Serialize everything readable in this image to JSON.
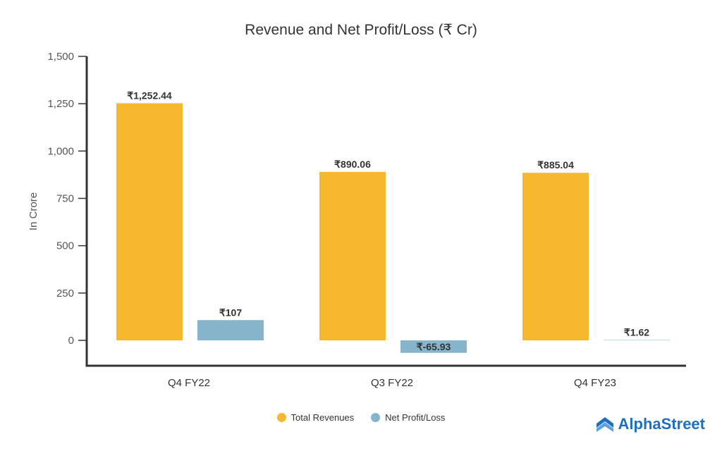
{
  "chart_data": {
    "type": "bar",
    "title": "Revenue and Net Profit/Loss (₹ Cr)",
    "xlabel": "",
    "ylabel": "In Crore",
    "ylim": [
      -134,
      1500
    ],
    "yticks": [
      0,
      250,
      500,
      750,
      1000,
      1250,
      1500
    ],
    "ytick_labels": [
      "0",
      "250",
      "500",
      "750",
      "1,000",
      "1,250",
      "1,500"
    ],
    "categories": [
      "Q4 FY22",
      "Q3 FY22",
      "Q4 FY23"
    ],
    "series": [
      {
        "name": "Total Revenues",
        "color": "#F5B82E",
        "values": [
          1252.44,
          890.06,
          885.04
        ],
        "labels": [
          "₹1,252.44",
          "₹890.06",
          "₹885.04"
        ]
      },
      {
        "name": "Net Profit/Loss",
        "color": "#85B4CB",
        "values": [
          107,
          -65.93,
          1.62
        ],
        "labels": [
          "₹107",
          "₹-65.93",
          "₹1.62"
        ]
      }
    ],
    "grid": false,
    "legend": "bottom-center"
  },
  "brand": {
    "name": "AlphaStreet",
    "color": "#1F6FBF"
  }
}
